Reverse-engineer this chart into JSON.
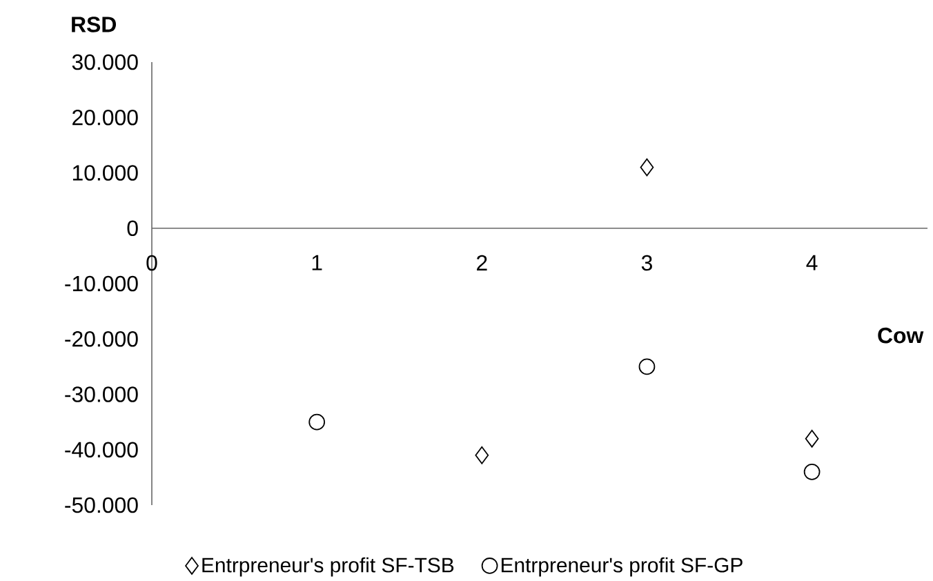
{
  "chart_data": {
    "type": "scatter",
    "xlabel": "Cow",
    "ylabel": "RSD",
    "x": [
      1,
      2,
      3,
      4
    ],
    "series": [
      {
        "name": "Entrpreneur's profit SF-TSB",
        "color": "#000000",
        "marker": "diamond",
        "values": [
          null,
          -41000,
          11000,
          -38000
        ]
      },
      {
        "name": "Entrpreneur's profit SF-GP",
        "color": "#000000",
        "marker": "circle",
        "values": [
          -35000,
          null,
          -25000,
          -44000
        ]
      }
    ],
    "xlim": [
      0,
      4.7
    ],
    "xticks": [
      0,
      1,
      2,
      3,
      4
    ],
    "ylim": [
      -50000,
      30000
    ],
    "yticks": [
      {
        "value": -50000,
        "label": "-50.000"
      },
      {
        "value": -40000,
        "label": "-40.000"
      },
      {
        "value": -30000,
        "label": "-30.000"
      },
      {
        "value": -20000,
        "label": "-20.000"
      },
      {
        "value": -10000,
        "label": "-10.000"
      },
      {
        "value": 0,
        "label": "0"
      },
      {
        "value": 10000,
        "label": "10.000"
      },
      {
        "value": 20000,
        "label": "20.000"
      },
      {
        "value": 30000,
        "label": "30.000"
      }
    ],
    "grid": false,
    "legend": "bottom"
  }
}
